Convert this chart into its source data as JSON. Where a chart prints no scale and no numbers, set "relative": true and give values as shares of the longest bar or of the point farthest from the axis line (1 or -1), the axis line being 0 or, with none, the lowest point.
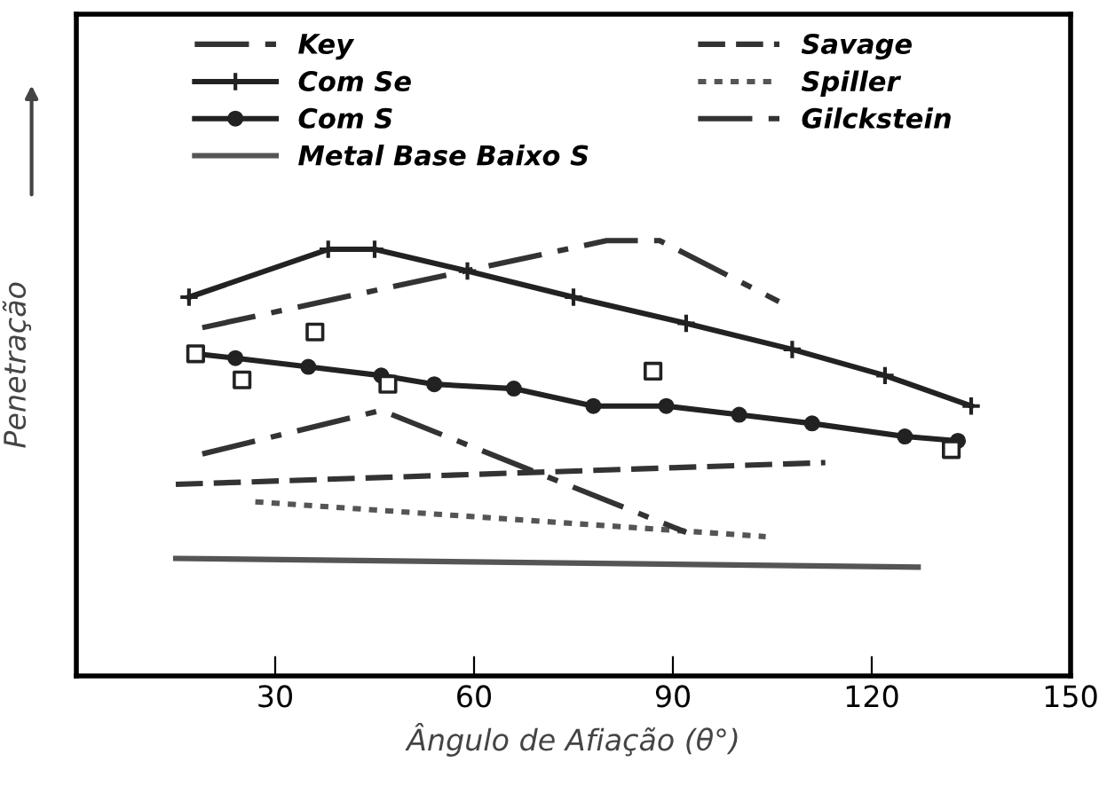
{
  "chart_data": {
    "type": "line",
    "relative": true,
    "xlabel": "Ângulo de Afiação (θ°)",
    "ylabel": "Penetração",
    "xlim": [
      0,
      150
    ],
    "xticks": [
      30,
      60,
      90,
      120,
      150
    ],
    "tick_labels": "x",
    "grid": false,
    "legend": "top",
    "series": [
      {
        "name": "Key",
        "color": "#333333",
        "line_style": "dashdot",
        "marker": "none",
        "x": [
          19,
          80,
          88,
          106
        ],
        "values": [
          0.8,
          1.0,
          1.0,
          0.86
        ]
      },
      {
        "name": "Com Se",
        "color": "#222222",
        "line_style": "solid",
        "marker": "cross",
        "x": [
          17,
          38,
          45,
          59,
          75,
          92,
          108,
          122,
          135
        ],
        "values": [
          0.87,
          0.98,
          0.98,
          0.93,
          0.87,
          0.81,
          0.75,
          0.69,
          0.62
        ]
      },
      {
        "name": "Com S",
        "color": "#222222",
        "line_style": "solid",
        "marker": "circle",
        "x": [
          18,
          24,
          35,
          46,
          54,
          66,
          78,
          89,
          100,
          111,
          125,
          133
        ],
        "values": [
          0.74,
          0.73,
          0.71,
          0.69,
          0.67,
          0.66,
          0.62,
          0.62,
          0.6,
          0.58,
          0.55,
          0.54
        ]
      },
      {
        "name": "Metal Base Baixo S",
        "color": "#555555",
        "line_style": "solid",
        "marker": "none",
        "x": [
          15,
          127
        ],
        "values": [
          0.27,
          0.25
        ]
      },
      {
        "name": "Savage",
        "color": "#333333",
        "line_style": "dashed",
        "marker": "none",
        "x": [
          15,
          113
        ],
        "values": [
          0.44,
          0.49
        ]
      },
      {
        "name": "Spiller",
        "color": "#555555",
        "line_style": "dotted",
        "marker": "none",
        "x": [
          27,
          104
        ],
        "values": [
          0.4,
          0.32
        ]
      },
      {
        "name": "Gilckstein",
        "color": "#333333",
        "line_style": "dashdot",
        "marker": "none",
        "x": [
          19,
          46,
          92
        ],
        "values": [
          0.51,
          0.61,
          0.33
        ]
      },
      {
        "type": "scatter",
        "color": "#222222",
        "marker": "square",
        "x": [
          18,
          25,
          36,
          47,
          87,
          132
        ],
        "values": [
          0.74,
          0.68,
          0.79,
          0.67,
          0.7,
          0.52
        ]
      }
    ]
  }
}
